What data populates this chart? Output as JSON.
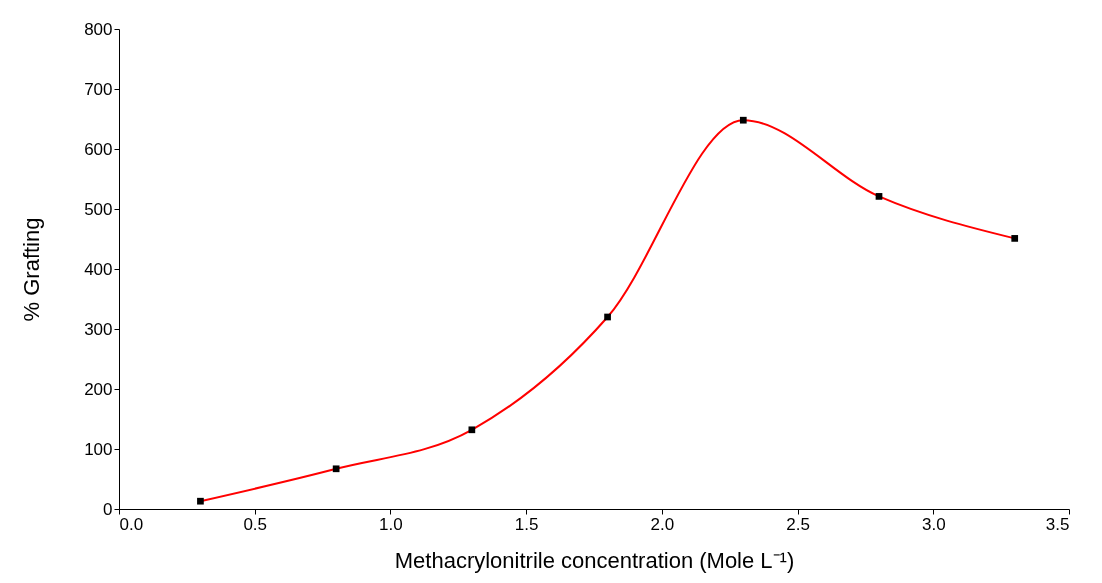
{
  "chart_data": {
    "type": "line",
    "xlabel": "Methacrylonitrile concentration (Mole L⁻¹)",
    "ylabel": "% Grafting",
    "x": [
      0.3,
      0.8,
      1.3,
      1.8,
      2.3,
      2.8,
      3.3
    ],
    "series": [
      {
        "color": "#ff0000",
        "values": [
          13,
          67,
          132,
          320,
          648,
          521,
          451
        ]
      }
    ],
    "xlim": [
      0,
      3.5
    ],
    "xticks": [
      {
        "value": 0,
        "label": "0.0"
      },
      0.5,
      {
        "value": 1,
        "label": "1.0"
      },
      1.5,
      {
        "value": 2,
        "label": "2.0"
      },
      2.5,
      {
        "value": 3,
        "label": "3.0"
      },
      3.5
    ],
    "ylim": [
      0,
      800
    ],
    "yticks": [
      0,
      100,
      200,
      300,
      400,
      500,
      600,
      700,
      800
    ],
    "grid": false,
    "marker": "square",
    "line_style": "solid"
  }
}
